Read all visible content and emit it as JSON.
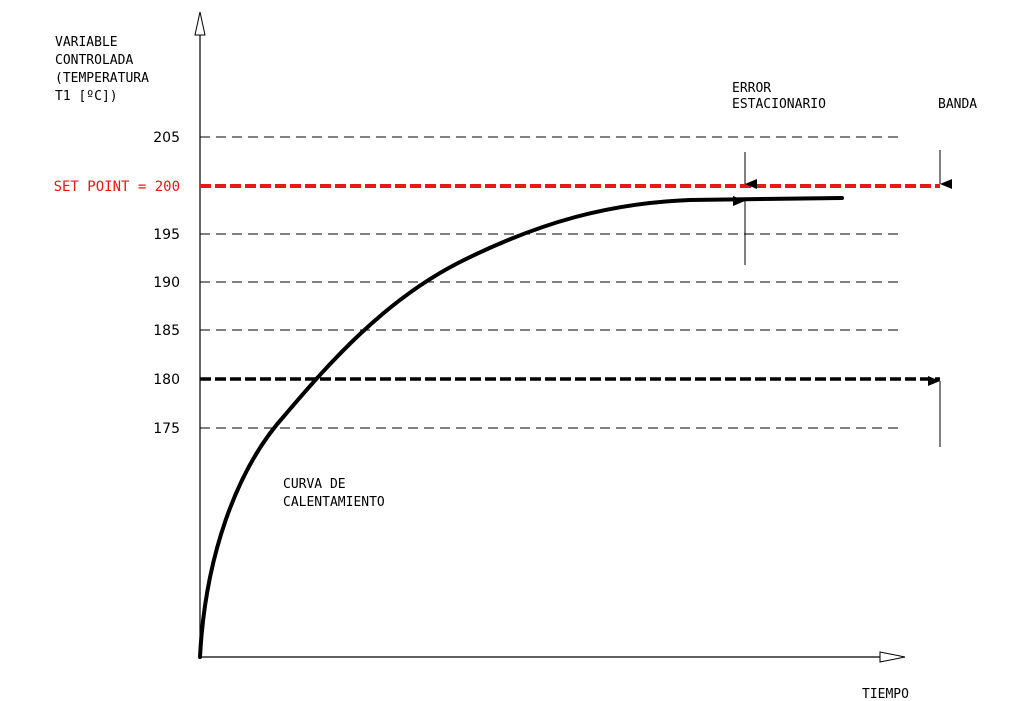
{
  "y_axis_label": [
    "VARIABLE",
    "CONTROLADA",
    "(TEMPERATURA",
    "T1 [ºC])"
  ],
  "x_axis_label": "TIEMPO",
  "set_point_label": "SET POINT = 200",
  "ticks": [
    "205",
    "195",
    "190",
    "185",
    "180",
    "175"
  ],
  "error_label": [
    "ERROR",
    "ESTACIONARIO"
  ],
  "band_label": "BANDA",
  "curve_label": [
    "CURVA DE",
    "CALENTAMIENTO"
  ],
  "colors": {
    "set_point": "#e81818",
    "line": "#000000",
    "grid": "#000000"
  }
}
